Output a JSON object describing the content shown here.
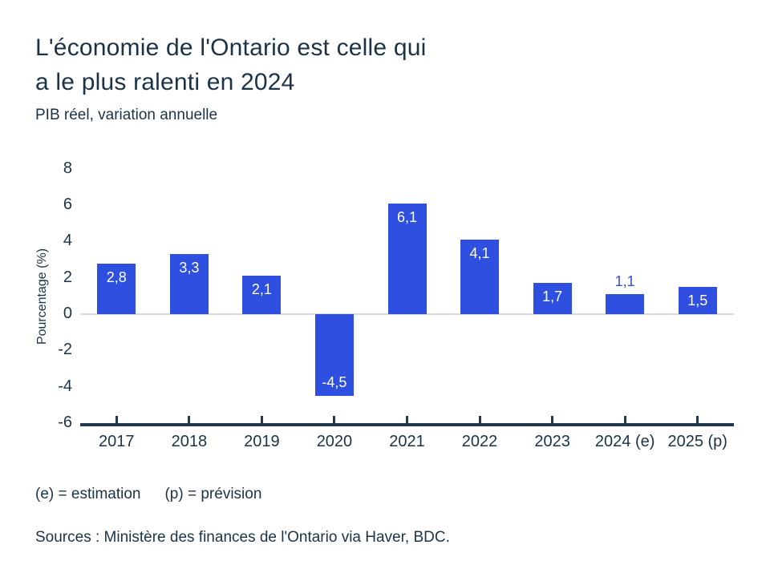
{
  "title": {
    "lines": [
      "L'économie de l'Ontario est celle qui",
      "a le plus ralenti en 2024"
    ]
  },
  "subtitle": "PIB réel, variation annuelle",
  "footnote": {
    "estimation": "(e) = estimation",
    "prevision": "(p) = prévision"
  },
  "sources": "Sources : Ministère des finances de l'Ontario via Haver, BDC.",
  "colors": {
    "bar": "#2e4fe0",
    "text": "#1c3347",
    "axis_line": "#23384d",
    "zero_line": "#dadada",
    "label_on_bar": "#ffffff"
  },
  "chart_data": {
    "type": "bar",
    "categories": [
      "2017",
      "2018",
      "2019",
      "2020",
      "2021",
      "2022",
      "2023",
      "2024 (e)",
      "2025 (p)"
    ],
    "values": [
      2.8,
      3.3,
      2.1,
      -4.5,
      6.1,
      4.1,
      1.7,
      1.1,
      1.5
    ],
    "value_labels": [
      "2,8",
      "3,3",
      "2,1",
      "-4,5",
      "6,1",
      "4,1",
      "1,7",
      "1,1",
      "1,5"
    ],
    "title": "L'économie de l'Ontario est celle qui a le plus ralenti en 2024",
    "xlabel": "",
    "ylabel": "Pourcentage (%)",
    "ylim": [
      -6,
      8
    ],
    "yticks": [
      8,
      6,
      4,
      2,
      0,
      -2,
      -4,
      -6
    ],
    "grid": false,
    "legend": false,
    "zero_line": true
  }
}
